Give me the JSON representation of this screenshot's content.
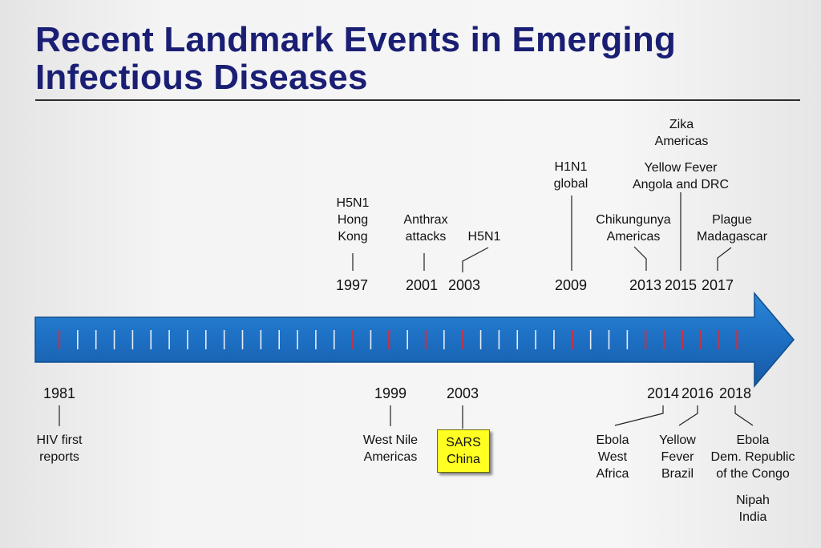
{
  "slide": {
    "title": "Recent Landmark Events in Emerging Infectious Diseases"
  },
  "colors": {
    "title": "#1a1f74",
    "arrow": "#1d6fc3",
    "arrow_edge": "#0f4d8e",
    "tick": "#e9eef6",
    "event_tick": "#c2344a",
    "highlight": "#ffff22"
  },
  "events_above": [
    {
      "year": "1997",
      "label": "H5N1\nHong\nKong"
    },
    {
      "year": "2001",
      "label": "Anthrax\nattacks"
    },
    {
      "year": "2003",
      "label": "H5N1"
    },
    {
      "year": "2009",
      "label": "H1N1\nglobal"
    },
    {
      "year": "2013",
      "label": "Chikungunya\nAmericas"
    },
    {
      "year": "2015",
      "label": "Yellow Fever\nAngola and DRC"
    },
    {
      "year": "2015",
      "label": "Zika\nAmericas"
    },
    {
      "year": "2017",
      "label": "Plague\nMadagascar"
    }
  ],
  "events_below": [
    {
      "year": "1981",
      "label": "HIV first\nreports"
    },
    {
      "year": "1999",
      "label": "West Nile\nAmericas"
    },
    {
      "year": "2003",
      "label": "SARS\nChina",
      "highlight": true
    },
    {
      "year": "2014",
      "label": "Ebola\nWest\nAfrica"
    },
    {
      "year": "2016",
      "label": "Yellow\nFever\nBrazil"
    },
    {
      "year": "2018",
      "label": "Ebola\nDem. Republic\nof the Congo"
    },
    {
      "year": "2018",
      "label": "Nipah\nIndia"
    }
  ],
  "axis": {
    "start_year": 1981,
    "end_year": 2018
  }
}
